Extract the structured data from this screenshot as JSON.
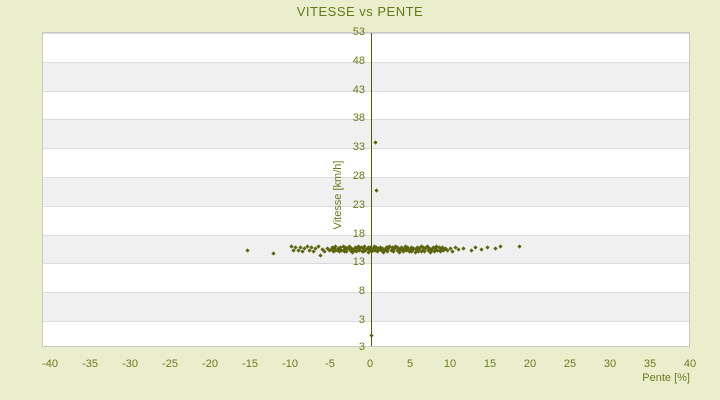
{
  "title": "VITESSE vs PENTE",
  "colors": {
    "page_background": "#eaeecd",
    "band_light": "#ffffff",
    "band_dark": "#f0f0f0",
    "gridline": "#dcdcdc",
    "plot_border": "#c9c9c9",
    "axis_line": "#4d5808",
    "text": "#6b7a1f",
    "marker": "#5d640e"
  },
  "chart_data": {
    "type": "scatter",
    "title": "VITESSE vs PENTE",
    "xlabel": "Pente [%]",
    "ylabel": "Vitesse [km/h]",
    "xlim": [
      -41,
      40
    ],
    "ylim": [
      -1.7,
      53
    ],
    "x_ticks": [
      -40,
      -35,
      -30,
      -25,
      -20,
      -15,
      -10,
      -5,
      0,
      5,
      10,
      15,
      20,
      25,
      30,
      35,
      40
    ],
    "y_ticks": [
      53,
      48,
      43,
      38,
      33,
      28,
      23,
      18,
      13,
      8,
      3
    ],
    "y_axis_bottom_label": "3",
    "grid": "horizontal gridlines with alternating white/grey bands every 5 units",
    "legend": "none",
    "marker": "small-diamond",
    "points": [
      [
        -15.5,
        15.2
      ],
      [
        -12.2,
        14.7
      ],
      [
        -9.9,
        15.9
      ],
      [
        -9.7,
        15.3
      ],
      [
        -9.4,
        15.7
      ],
      [
        -9.1,
        15.2
      ],
      [
        -8.8,
        15.8
      ],
      [
        -8.6,
        15.1
      ],
      [
        -8.3,
        15.5
      ],
      [
        -8.0,
        16.0
      ],
      [
        -7.7,
        15.3
      ],
      [
        -7.4,
        15.7
      ],
      [
        -7.2,
        15.1
      ],
      [
        -6.9,
        15.5
      ],
      [
        -6.6,
        15.9
      ],
      [
        -6.3,
        14.3
      ],
      [
        -6.1,
        15.4
      ],
      [
        -5.8,
        15.0
      ],
      [
        -5.5,
        15.6
      ],
      [
        -5.2,
        15.2
      ],
      [
        -5.0,
        15.4
      ],
      [
        -4.85,
        15.8
      ],
      [
        -4.7,
        15.1
      ],
      [
        -4.55,
        15.6
      ],
      [
        -4.4,
        15.9
      ],
      [
        -4.25,
        15.2
      ],
      [
        -4.1,
        15.5
      ],
      [
        -3.95,
        15.0
      ],
      [
        -3.8,
        15.7
      ],
      [
        -3.65,
        15.3
      ],
      [
        -3.5,
        16.0
      ],
      [
        -3.35,
        15.4
      ],
      [
        -3.2,
        15.8
      ],
      [
        -3.05,
        15.1
      ],
      [
        -2.9,
        15.5
      ],
      [
        -2.75,
        15.9
      ],
      [
        -2.6,
        15.2
      ],
      [
        -2.45,
        15.6
      ],
      [
        -2.3,
        14.9
      ],
      [
        -2.15,
        15.4
      ],
      [
        -2.0,
        15.8
      ],
      [
        -1.85,
        15.1
      ],
      [
        -1.7,
        15.5
      ],
      [
        -1.55,
        16.0
      ],
      [
        -1.4,
        15.3
      ],
      [
        -1.25,
        15.7
      ],
      [
        -1.1,
        15.0
      ],
      [
        -0.95,
        15.5
      ],
      [
        -0.8,
        15.9
      ],
      [
        -0.65,
        15.2
      ],
      [
        -0.5,
        15.6
      ],
      [
        -0.35,
        14.9
      ],
      [
        -0.2,
        15.4
      ],
      [
        -0.05,
        15.8
      ],
      [
        0.1,
        15.1
      ],
      [
        0.25,
        15.5
      ],
      [
        0.4,
        16.0
      ],
      [
        0.55,
        15.3
      ],
      [
        0.7,
        15.7
      ],
      [
        0.85,
        15.0
      ],
      [
        1.0,
        15.4
      ],
      [
        1.15,
        15.8
      ],
      [
        1.3,
        15.2
      ],
      [
        1.45,
        15.6
      ],
      [
        1.6,
        14.9
      ],
      [
        1.75,
        15.4
      ],
      [
        1.9,
        15.8
      ],
      [
        2.05,
        15.1
      ],
      [
        2.2,
        15.5
      ],
      [
        2.35,
        16.0
      ],
      [
        2.5,
        15.3
      ],
      [
        2.65,
        15.7
      ],
      [
        2.8,
        15.0
      ],
      [
        2.95,
        15.5
      ],
      [
        3.1,
        15.9
      ],
      [
        3.25,
        15.2
      ],
      [
        3.4,
        15.6
      ],
      [
        3.55,
        14.9
      ],
      [
        3.7,
        15.4
      ],
      [
        3.85,
        15.8
      ],
      [
        4.0,
        15.1
      ],
      [
        4.15,
        15.5
      ],
      [
        4.3,
        16.0
      ],
      [
        4.45,
        15.3
      ],
      [
        4.6,
        15.7
      ],
      [
        4.75,
        15.0
      ],
      [
        4.9,
        15.4
      ],
      [
        5.05,
        15.8
      ],
      [
        5.2,
        15.2
      ],
      [
        5.35,
        15.6
      ],
      [
        5.5,
        14.9
      ],
      [
        5.65,
        15.4
      ],
      [
        5.8,
        15.8
      ],
      [
        5.95,
        15.1
      ],
      [
        6.1,
        15.5
      ],
      [
        6.25,
        16.0
      ],
      [
        6.4,
        15.3
      ],
      [
        6.55,
        15.7
      ],
      [
        6.7,
        15.0
      ],
      [
        6.85,
        15.5
      ],
      [
        7.0,
        15.9
      ],
      [
        7.15,
        15.2
      ],
      [
        7.3,
        15.6
      ],
      [
        7.45,
        14.9
      ],
      [
        7.6,
        15.4
      ],
      [
        7.75,
        15.8
      ],
      [
        7.9,
        15.1
      ],
      [
        8.05,
        15.5
      ],
      [
        8.2,
        16.0
      ],
      [
        8.35,
        15.3
      ],
      [
        8.5,
        15.7
      ],
      [
        8.65,
        15.0
      ],
      [
        8.8,
        15.4
      ],
      [
        8.95,
        15.8
      ],
      [
        9.1,
        15.2
      ],
      [
        9.25,
        15.6
      ],
      [
        -4.5,
        15.3
      ],
      [
        -3.9,
        15.6
      ],
      [
        -3.3,
        15.0
      ],
      [
        -2.7,
        15.5
      ],
      [
        -2.1,
        15.2
      ],
      [
        -1.5,
        15.6
      ],
      [
        -0.9,
        15.1
      ],
      [
        -0.3,
        15.7
      ],
      [
        0.3,
        15.2
      ],
      [
        0.9,
        15.6
      ],
      [
        1.5,
        15.1
      ],
      [
        2.1,
        15.7
      ],
      [
        2.7,
        15.3
      ],
      [
        3.3,
        15.8
      ],
      [
        3.9,
        15.2
      ],
      [
        4.5,
        15.6
      ],
      [
        5.1,
        15.0
      ],
      [
        5.7,
        15.5
      ],
      [
        6.3,
        15.1
      ],
      [
        6.9,
        15.7
      ],
      [
        7.5,
        15.3
      ],
      [
        8.1,
        15.6
      ],
      [
        8.7,
        15.2
      ],
      [
        9.6,
        15.3
      ],
      [
        9.9,
        15.6
      ],
      [
        10.2,
        15.1
      ],
      [
        10.5,
        15.7
      ],
      [
        10.9,
        15.4
      ],
      [
        11.6,
        15.6
      ],
      [
        12.5,
        15.2
      ],
      [
        13.1,
        15.7
      ],
      [
        13.8,
        15.4
      ],
      [
        14.6,
        15.8
      ],
      [
        15.5,
        15.5
      ],
      [
        16.2,
        15.9
      ],
      [
        18.5,
        16.0
      ],
      [
        0.6,
        33.9
      ],
      [
        0.7,
        25.6
      ],
      [
        0.1,
        0.4
      ]
    ]
  }
}
